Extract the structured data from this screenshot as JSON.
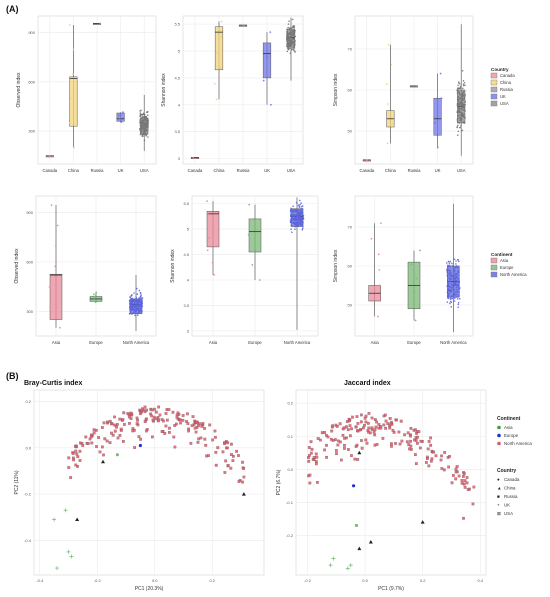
{
  "labels": {
    "section_a": "(A)",
    "section_b": "(B)"
  },
  "colors": {
    "Canada": "#f28e8e",
    "China": "#f3d37a",
    "Russia": "#9b9b9b",
    "UK": "#6f76e8",
    "USA": "#8c8c8c",
    "Asia": "#e8899a",
    "Europe": "#79b875",
    "North America": "#5a63dc",
    "pcoa_points": "#d95b6a",
    "grid": "#ebebeb",
    "axis": "#444444"
  },
  "legends": {
    "country_box": {
      "title": "Country",
      "entries": [
        "Canada",
        "China",
        "Russia",
        "UK",
        "USA"
      ]
    },
    "continent_box": {
      "title": "Continent",
      "entries": [
        "Asia",
        "Europe",
        "North America"
      ]
    },
    "pcoa_continent": {
      "title": "Continent",
      "entries": [
        "Asia",
        "Europe",
        "North America"
      ]
    },
    "pcoa_country": {
      "title": "Country",
      "entries": [
        "Canada",
        "China",
        "Russia",
        "UK",
        "USA"
      ],
      "symbols": [
        "●",
        "▲",
        "■",
        "+",
        "⊠"
      ]
    }
  },
  "chart_data": [
    {
      "type": "box",
      "ylabel": "Observed index",
      "categories": [
        "Canada",
        "China",
        "Russia",
        "UK",
        "USA"
      ],
      "ylim": [
        100,
        1000
      ],
      "yticks": [
        300,
        600,
        900
      ],
      "series": [
        {
          "category": "Canada",
          "q1": 150,
          "median": 150,
          "q3": 150,
          "low": 150,
          "high": 150,
          "n": 1
        },
        {
          "category": "China",
          "q1": 330,
          "median": 620,
          "q3": 630,
          "low": 200,
          "high": 945,
          "n": 6
        },
        {
          "category": "Russia",
          "q1": 955,
          "median": 955,
          "q3": 955,
          "low": 955,
          "high": 955,
          "n": 1
        },
        {
          "category": "UK",
          "q1": 360,
          "median": 375,
          "q3": 410,
          "low": 355,
          "high": 415,
          "n": 4
        },
        {
          "category": "USA",
          "q1": 280,
          "median": 345,
          "q3": 380,
          "low": 180,
          "high": 520,
          "n": 180
        }
      ]
    },
    {
      "type": "box",
      "ylabel": "Shannon index",
      "categories": [
        "Canada",
        "China",
        "Russia",
        "UK",
        "USA"
      ],
      "ylim": [
        2.9,
        5.65
      ],
      "yticks": [
        3.0,
        3.5,
        4.0,
        4.5,
        5.0,
        5.5
      ],
      "series": [
        {
          "category": "Canada",
          "q1": 3.02,
          "median": 3.02,
          "q3": 3.02,
          "low": 3.02,
          "high": 3.02,
          "n": 1
        },
        {
          "category": "China",
          "q1": 4.65,
          "median": 5.35,
          "q3": 5.45,
          "low": 4.1,
          "high": 5.55,
          "n": 6
        },
        {
          "category": "Russia",
          "q1": 5.48,
          "median": 5.48,
          "q3": 5.48,
          "low": 5.48,
          "high": 5.48,
          "n": 1
        },
        {
          "category": "UK",
          "q1": 4.5,
          "median": 4.95,
          "q3": 5.15,
          "low": 4.0,
          "high": 5.35,
          "n": 4
        },
        {
          "category": "USA",
          "q1": 5.05,
          "median": 5.25,
          "q3": 5.4,
          "low": 4.45,
          "high": 5.62,
          "n": 180
        }
      ]
    },
    {
      "type": "box",
      "ylabel": "Simpson index",
      "categories": [
        "Canada",
        "China",
        "Russia",
        "UK",
        "USA"
      ],
      "ylim": [
        42,
        78
      ],
      "yticks": [
        50,
        60,
        70
      ],
      "series": [
        {
          "category": "Canada",
          "q1": 43,
          "median": 43,
          "q3": 43,
          "low": 43,
          "high": 43,
          "n": 1
        },
        {
          "category": "China",
          "q1": 51,
          "median": 53,
          "q3": 55,
          "low": 47,
          "high": 71,
          "n": 6
        },
        {
          "category": "Russia",
          "q1": 61,
          "median": 61,
          "q3": 61,
          "low": 61,
          "high": 61,
          "n": 1
        },
        {
          "category": "UK",
          "q1": 49,
          "median": 53,
          "q3": 58,
          "low": 46,
          "high": 64,
          "n": 4
        },
        {
          "category": "USA",
          "q1": 52,
          "median": 56,
          "q3": 60,
          "low": 44,
          "high": 76,
          "n": 180
        }
      ]
    },
    {
      "type": "box",
      "ylabel": "Observed index",
      "categories": [
        "Asia",
        "Europe",
        "North America"
      ],
      "ylim": [
        150,
        1000
      ],
      "yticks": [
        300,
        600,
        900
      ],
      "series": [
        {
          "category": "Asia",
          "q1": 250,
          "median": 520,
          "q3": 525,
          "low": 200,
          "high": 945,
          "n": 7
        },
        {
          "category": "Europe",
          "q1": 360,
          "median": 375,
          "q3": 390,
          "low": 355,
          "high": 415,
          "n": 6
        },
        {
          "category": "North America",
          "q1": 285,
          "median": 340,
          "q3": 375,
          "low": 180,
          "high": 520,
          "n": 181
        }
      ]
    },
    {
      "type": "box",
      "ylabel": "Shannon index",
      "categories": [
        "Asia",
        "Europe",
        "North America"
      ],
      "ylim": [
        2.9,
        5.65
      ],
      "yticks": [
        3.0,
        3.5,
        4.0,
        4.5,
        5.0,
        5.5
      ],
      "series": [
        {
          "category": "Asia",
          "q1": 4.65,
          "median": 5.3,
          "q3": 5.35,
          "low": 4.1,
          "high": 5.55,
          "n": 7
        },
        {
          "category": "Europe",
          "q1": 4.55,
          "median": 4.95,
          "q3": 5.2,
          "low": 4.0,
          "high": 5.48,
          "n": 6
        },
        {
          "category": "North America",
          "q1": 5.05,
          "median": 5.25,
          "q3": 5.4,
          "low": 3.02,
          "high": 5.62,
          "n": 181
        }
      ]
    },
    {
      "type": "box",
      "ylabel": "Simpson index",
      "categories": [
        "Asia",
        "Europe",
        "North America"
      ],
      "ylim": [
        42,
        78
      ],
      "yticks": [
        50,
        60,
        70
      ],
      "series": [
        {
          "category": "Asia",
          "q1": 51,
          "median": 53,
          "q3": 55,
          "low": 47,
          "high": 71,
          "n": 7
        },
        {
          "category": "Europe",
          "q1": 49,
          "median": 55,
          "q3": 61,
          "low": 46,
          "high": 64,
          "n": 6
        },
        {
          "category": "North America",
          "q1": 52,
          "median": 56,
          "q3": 60,
          "low": 43,
          "high": 76,
          "n": 181
        }
      ]
    },
    {
      "type": "scatter",
      "title": "Bray-Curtis index",
      "xlabel": "PC1 (20.3%)",
      "ylabel": "PC2 (11%)",
      "xlim": [
        -0.42,
        0.38
      ],
      "ylim": [
        -0.55,
        0.25
      ],
      "xticks": [
        -0.4,
        -0.2,
        0.0,
        0.2
      ],
      "yticks": [
        -0.4,
        -0.2,
        0.0,
        0.2
      ],
      "xtick_labels": [
        "-0.4",
        "-0.2",
        "0.0",
        "0.2"
      ],
      "ytick_labels": [
        "-0.4",
        "-0.2",
        "0.0",
        "0.2"
      ],
      "highlight": [
        {
          "continent": "Asia",
          "country": "China",
          "x": 0.31,
          "y": -0.2
        },
        {
          "continent": "Asia",
          "country": "China",
          "x": -0.27,
          "y": -0.31
        },
        {
          "continent": "Asia",
          "country": "China",
          "x": -0.18,
          "y": -0.06
        },
        {
          "continent": "Europe",
          "country": "UK",
          "x": -0.31,
          "y": -0.27
        },
        {
          "continent": "Europe",
          "country": "UK",
          "x": -0.35,
          "y": -0.31
        },
        {
          "continent": "Europe",
          "country": "UK",
          "x": -0.34,
          "y": -0.52
        },
        {
          "continent": "Europe",
          "country": "UK",
          "x": -0.3,
          "y": -0.45
        },
        {
          "continent": "Europe",
          "country": "UK",
          "x": -0.29,
          "y": -0.47
        },
        {
          "continent": "Europe",
          "country": "Russia",
          "x": -0.13,
          "y": -0.03
        },
        {
          "continent": "North America",
          "country": "Canada",
          "x": -0.05,
          "y": 0.01
        }
      ]
    },
    {
      "type": "scatter",
      "title": "Jaccard index",
      "xlabel": "PC1 (9.7%)",
      "ylabel": "PC2 (6.7%)",
      "xlim": [
        -0.24,
        0.42
      ],
      "ylim": [
        -0.32,
        0.24
      ],
      "xticks": [
        -0.2,
        0.0,
        0.2,
        0.4
      ],
      "yticks": [
        -0.2,
        -0.1,
        0.0,
        0.1,
        0.2
      ],
      "xtick_labels": [
        "-0.2",
        "0.0",
        "0.2",
        "0.4"
      ],
      "ytick_labels": [
        "-0.2",
        "-0.1",
        "0.0",
        "0.1",
        "0.2"
      ],
      "highlight": [
        {
          "continent": "Asia",
          "country": "China",
          "x": -0.02,
          "y": -0.24
        },
        {
          "continent": "Asia",
          "country": "China",
          "x": 0.02,
          "y": -0.22
        },
        {
          "continent": "Asia",
          "country": "China",
          "x": 0.2,
          "y": -0.16
        },
        {
          "continent": "Asia",
          "country": "China",
          "x": -0.02,
          "y": 0.05
        },
        {
          "continent": "Europe",
          "country": "UK",
          "x": -0.11,
          "y": -0.27
        },
        {
          "continent": "Europe",
          "country": "UK",
          "x": -0.12,
          "y": -0.29
        },
        {
          "continent": "Europe",
          "country": "UK",
          "x": -0.06,
          "y": -0.3
        },
        {
          "continent": "Europe",
          "country": "UK",
          "x": -0.05,
          "y": -0.29
        },
        {
          "continent": "Europe",
          "country": "Russia",
          "x": -0.03,
          "y": -0.17
        },
        {
          "continent": "North America",
          "country": "Canada",
          "x": -0.04,
          "y": -0.05
        }
      ]
    }
  ]
}
